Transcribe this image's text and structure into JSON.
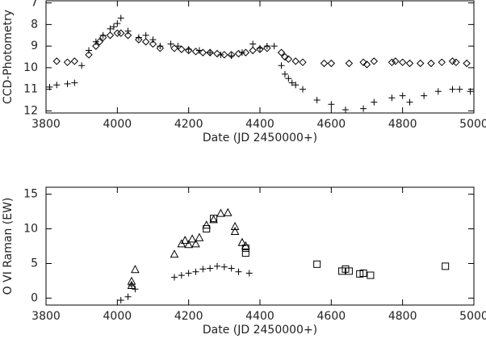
{
  "chart_data": [
    {
      "type": "scatter",
      "ylabel": "CCD-Photometry",
      "xlabel": "Date (JD 2450000+)",
      "xlim": [
        3800,
        5000
      ],
      "xticks": [
        3800,
        4000,
        4200,
        4400,
        4600,
        4800,
        5000
      ],
      "ylim": [
        6.9,
        12.1
      ],
      "yticks": [
        7,
        8,
        9,
        10,
        11,
        12
      ],
      "y_inverted": true,
      "series": [
        {
          "marker": "diamond",
          "color": "#000000",
          "x": [
            3830,
            3860,
            3880,
            3920,
            3940,
            3950,
            3960,
            3980,
            4000,
            4010,
            4030,
            4060,
            4080,
            4100,
            4120,
            4160,
            4180,
            4200,
            4220,
            4240,
            4260,
            4280,
            4300,
            4320,
            4340,
            4360,
            4380,
            4400,
            4420,
            4460,
            4470,
            4480,
            4500,
            4520,
            4580,
            4600,
            4650,
            4690,
            4700,
            4720,
            4770,
            4780,
            4800,
            4820,
            4850,
            4880,
            4910,
            4940,
            4950,
            4980
          ],
          "values": [
            9.7,
            9.75,
            9.7,
            9.4,
            9.0,
            8.8,
            8.6,
            8.5,
            8.4,
            8.4,
            8.5,
            8.7,
            8.8,
            8.9,
            9.1,
            9.1,
            9.15,
            9.2,
            9.25,
            9.3,
            9.3,
            9.35,
            9.4,
            9.4,
            9.35,
            9.3,
            9.2,
            9.15,
            9.1,
            9.3,
            9.5,
            9.6,
            9.7,
            9.75,
            9.8,
            9.8,
            9.8,
            9.75,
            9.85,
            9.7,
            9.75,
            9.7,
            9.75,
            9.8,
            9.8,
            9.8,
            9.75,
            9.7,
            9.75,
            9.8
          ]
        },
        {
          "marker": "plus",
          "color": "#000000",
          "x": [
            3810,
            3830,
            3860,
            3880,
            3900,
            3920,
            3940,
            3960,
            3980,
            3990,
            4000,
            4010,
            4030,
            4060,
            4080,
            4100,
            4120,
            4150,
            4170,
            4200,
            4230,
            4260,
            4290,
            4320,
            4350,
            4380,
            4400,
            4420,
            4440,
            4460,
            4470,
            4480,
            4490,
            4500,
            4520,
            4560,
            4600,
            4640,
            4690,
            4720,
            4770,
            4800,
            4820,
            4860,
            4900,
            4940,
            4960,
            4990
          ],
          "values": [
            10.9,
            10.8,
            10.75,
            10.7,
            9.9,
            9.2,
            8.8,
            8.5,
            8.2,
            8.1,
            7.95,
            7.7,
            8.3,
            8.6,
            8.5,
            8.7,
            9.0,
            8.9,
            9.0,
            9.15,
            9.2,
            9.3,
            9.4,
            9.45,
            9.3,
            8.9,
            9.1,
            9.0,
            9.0,
            9.9,
            10.3,
            10.5,
            10.7,
            10.8,
            11.0,
            11.5,
            11.7,
            11.95,
            11.9,
            11.6,
            11.4,
            11.3,
            11.6,
            11.3,
            11.1,
            11.0,
            11.0,
            11.1
          ]
        }
      ]
    },
    {
      "type": "scatter",
      "ylabel": "O VI Raman (EW)",
      "xlabel": "Date (JD 2450000+)",
      "xlim": [
        3800,
        5000
      ],
      "xticks": [
        3800,
        4000,
        4200,
        4400,
        4600,
        4800,
        5000
      ],
      "ylim": [
        -1,
        16
      ],
      "yticks": [
        0,
        5,
        10,
        15
      ],
      "y_inverted": false,
      "series": [
        {
          "marker": "triangle",
          "color": "#000000",
          "x": [
            4040,
            4040,
            4050,
            4160,
            4180,
            4190,
            4200,
            4210,
            4220,
            4230,
            4250,
            4270,
            4290,
            4310,
            4330,
            4330,
            4350,
            4360
          ],
          "values": [
            1.8,
            2.4,
            4.1,
            6.3,
            7.8,
            8.3,
            7.7,
            8.5,
            7.8,
            8.7,
            10.5,
            11.3,
            12.2,
            12.3,
            10.3,
            9.6,
            8.0,
            7.5
          ]
        },
        {
          "marker": "square",
          "color": "#000000",
          "x": [
            4250,
            4270,
            4360,
            4360,
            4560,
            4630,
            4640,
            4650,
            4680,
            4690,
            4710,
            4920
          ],
          "values": [
            10.0,
            11.5,
            7.2,
            6.5,
            4.9,
            3.9,
            4.2,
            3.9,
            3.5,
            3.6,
            3.3,
            4.6
          ]
        },
        {
          "marker": "plus",
          "color": "#000000",
          "x": [
            4010,
            4030,
            4040,
            4050,
            4160,
            4180,
            4200,
            4220,
            4240,
            4260,
            4280,
            4300,
            4320,
            4340,
            4370
          ],
          "values": [
            -0.3,
            0.2,
            1.8,
            1.3,
            3.0,
            3.3,
            3.6,
            3.8,
            4.2,
            4.3,
            4.6,
            4.5,
            4.3,
            3.8,
            3.6
          ]
        }
      ]
    }
  ]
}
